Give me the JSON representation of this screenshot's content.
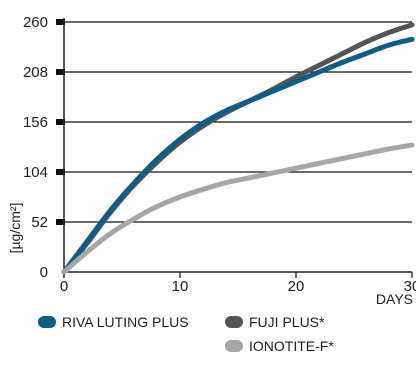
{
  "chart_data": {
    "type": "line",
    "title": "",
    "xlabel": "DAYS",
    "ylabel": "[µg/cm²]",
    "xlim": [
      0,
      30
    ],
    "ylim": [
      0,
      260
    ],
    "x_ticks": [
      "0",
      "10",
      "20",
      "30"
    ],
    "y_ticks": [
      "0",
      "52",
      "104",
      "156",
      "208",
      "260"
    ],
    "grid": "horizontal",
    "legend_position": "bottom",
    "series": [
      {
        "name": "FUJI PLUS*",
        "color": "#555555",
        "x": [
          0,
          2,
          4,
          6,
          8,
          10,
          12,
          14,
          16,
          18,
          20,
          22,
          24,
          26,
          28,
          30
        ],
        "y": [
          0,
          30,
          62,
          90,
          114,
          135,
          152,
          166,
          178,
          190,
          203,
          215,
          227,
          239,
          249,
          257
        ]
      },
      {
        "name": "RIVA LUTING PLUS",
        "color": "#0d5d86",
        "x": [
          0,
          2,
          4,
          6,
          8,
          10,
          12,
          14,
          16,
          18,
          20,
          22,
          24,
          26,
          28,
          30
        ],
        "y": [
          0,
          32,
          64,
          92,
          117,
          138,
          155,
          168,
          178,
          188,
          198,
          208,
          218,
          227,
          236,
          242
        ]
      },
      {
        "name": "IONOTITE-F*",
        "color": "#a6a6a6",
        "x": [
          0,
          2,
          4,
          6,
          8,
          10,
          12,
          14,
          16,
          18,
          20,
          22,
          24,
          26,
          28,
          30
        ],
        "y": [
          0,
          21,
          40,
          55,
          68,
          78,
          86,
          93,
          98,
          103,
          108,
          113,
          118,
          123,
          128,
          132
        ]
      }
    ],
    "legend": [
      {
        "label": "RIVA LUTING PLUS",
        "color": "#0d5d86"
      },
      {
        "label": "FUJI PLUS*",
        "color": "#555555"
      },
      {
        "label": "IONOTITE-F*",
        "color": "#a6a6a6"
      }
    ]
  }
}
